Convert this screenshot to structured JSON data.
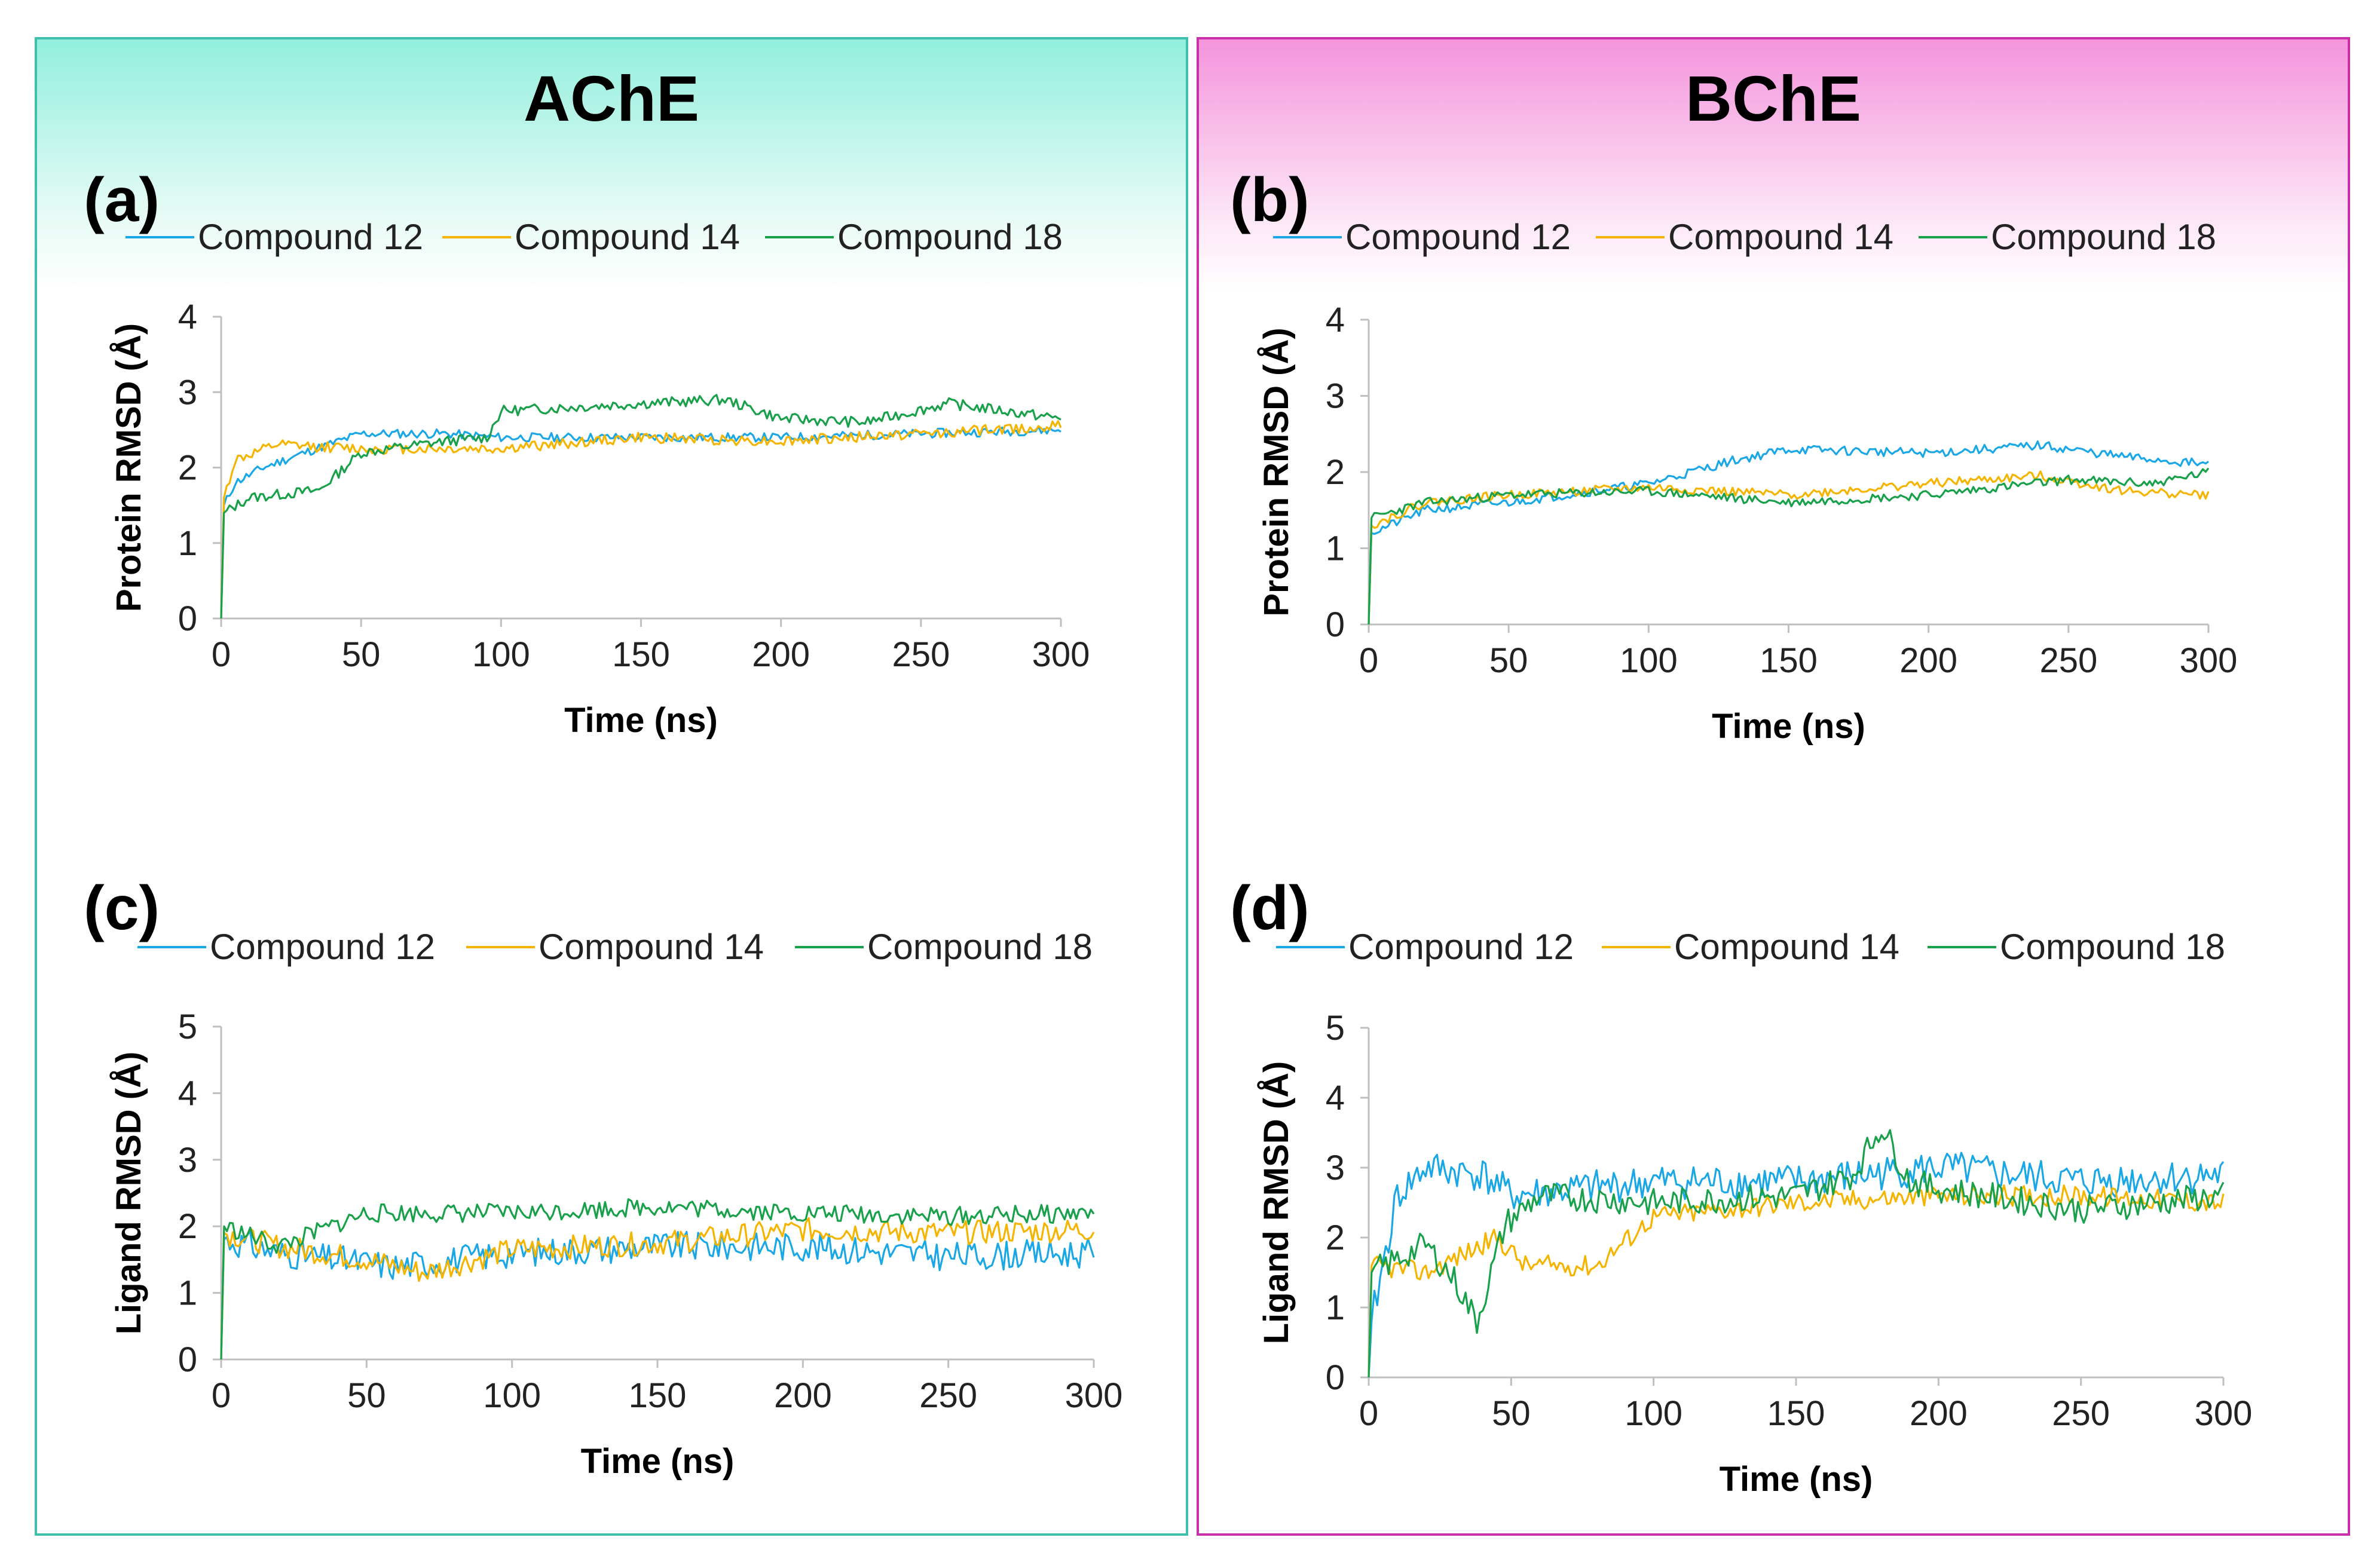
{
  "panels": {
    "ache": {
      "title": "AChE"
    },
    "bche": {
      "title": "BChE"
    }
  },
  "colors": {
    "compound_12": "#1aa7e6",
    "compound_14": "#f5b400",
    "compound_18": "#18a04a"
  },
  "chart_data": [
    {
      "id": "a",
      "panel_label": "(a)",
      "type": "line",
      "xlabel": "Time (ns)",
      "ylabel": "Protein RMSD (Å)",
      "xlim": [
        0,
        300
      ],
      "ylim": [
        0,
        4
      ],
      "xticks": [
        "0",
        "50",
        "100",
        "150",
        "200",
        "250",
        "300"
      ],
      "yticks": [
        "0",
        "1",
        "2",
        "3",
        "4"
      ],
      "legend": [
        "Compound 12",
        "Compound 14",
        "Compound 18"
      ],
      "series": [
        {
          "name": "Compound 12",
          "color": "#1aa7e6",
          "noise": 0.06,
          "seed": 11,
          "points": [
            [
              0,
              0
            ],
            [
              1,
              1.5
            ],
            [
              5,
              1.8
            ],
            [
              15,
              2.0
            ],
            [
              30,
              2.2
            ],
            [
              50,
              2.45
            ],
            [
              80,
              2.45
            ],
            [
              100,
              2.4
            ],
            [
              150,
              2.4
            ],
            [
              200,
              2.4
            ],
            [
              250,
              2.45
            ],
            [
              300,
              2.5
            ]
          ]
        },
        {
          "name": "Compound 14",
          "color": "#f5b400",
          "noise": 0.07,
          "seed": 12,
          "points": [
            [
              0,
              0
            ],
            [
              1,
              1.6
            ],
            [
              5,
              2.1
            ],
            [
              20,
              2.3
            ],
            [
              50,
              2.25
            ],
            [
              100,
              2.25
            ],
            [
              150,
              2.4
            ],
            [
              200,
              2.35
            ],
            [
              250,
              2.45
            ],
            [
              300,
              2.55
            ]
          ]
        },
        {
          "name": "Compound 18",
          "color": "#18a04a",
          "noise": 0.07,
          "seed": 13,
          "points": [
            [
              0,
              0
            ],
            [
              1,
              1.4
            ],
            [
              10,
              1.6
            ],
            [
              35,
              1.7
            ],
            [
              50,
              2.2
            ],
            [
              80,
              2.35
            ],
            [
              95,
              2.4
            ],
            [
              100,
              2.75
            ],
            [
              150,
              2.85
            ],
            [
              180,
              2.9
            ],
            [
              200,
              2.65
            ],
            [
              230,
              2.6
            ],
            [
              260,
              2.85
            ],
            [
              300,
              2.65
            ]
          ]
        }
      ]
    },
    {
      "id": "b",
      "panel_label": "(b)",
      "type": "line",
      "xlabel": "Time (ns)",
      "ylabel": "Protein RMSD (Å)",
      "xlim": [
        0,
        300
      ],
      "ylim": [
        0,
        4
      ],
      "xticks": [
        "0",
        "50",
        "100",
        "150",
        "200",
        "250",
        "300"
      ],
      "yticks": [
        "0",
        "1",
        "2",
        "3",
        "4"
      ],
      "legend": [
        "Compound 12",
        "Compound 14",
        "Compound 18"
      ],
      "series": [
        {
          "name": "Compound 12",
          "color": "#1aa7e6",
          "noise": 0.06,
          "seed": 21,
          "points": [
            [
              0,
              0
            ],
            [
              1,
              1.2
            ],
            [
              20,
              1.5
            ],
            [
              50,
              1.6
            ],
            [
              100,
              1.85
            ],
            [
              130,
              2.15
            ],
            [
              150,
              2.3
            ],
            [
              200,
              2.25
            ],
            [
              240,
              2.35
            ],
            [
              270,
              2.2
            ],
            [
              300,
              2.1
            ]
          ]
        },
        {
          "name": "Compound 14",
          "color": "#f5b400",
          "noise": 0.06,
          "seed": 22,
          "points": [
            [
              0,
              0
            ],
            [
              1,
              1.3
            ],
            [
              20,
              1.6
            ],
            [
              50,
              1.7
            ],
            [
              100,
              1.8
            ],
            [
              150,
              1.7
            ],
            [
              200,
              1.85
            ],
            [
              240,
              1.95
            ],
            [
              270,
              1.75
            ],
            [
              300,
              1.7
            ]
          ]
        },
        {
          "name": "Compound 18",
          "color": "#18a04a",
          "noise": 0.06,
          "seed": 23,
          "points": [
            [
              0,
              0
            ],
            [
              1,
              1.4
            ],
            [
              20,
              1.6
            ],
            [
              50,
              1.7
            ],
            [
              100,
              1.75
            ],
            [
              150,
              1.6
            ],
            [
              200,
              1.7
            ],
            [
              250,
              1.9
            ],
            [
              280,
              1.85
            ],
            [
              300,
              2.0
            ]
          ]
        }
      ]
    },
    {
      "id": "c",
      "panel_label": "(c)",
      "type": "line",
      "xlabel": "Time (ns)",
      "ylabel": "Ligand RMSD (Å)",
      "xlim": [
        0,
        300
      ],
      "ylim": [
        0,
        5
      ],
      "xticks": [
        "0",
        "50",
        "100",
        "150",
        "200",
        "250",
        "300"
      ],
      "yticks": [
        "0",
        "1",
        "2",
        "3",
        "4",
        "5"
      ],
      "legend": [
        "Compound 12",
        "Compound 14",
        "Compound 18"
      ],
      "series": [
        {
          "name": "Compound 12",
          "color": "#1aa7e6",
          "noise": 0.22,
          "seed": 31,
          "points": [
            [
              0,
              0
            ],
            [
              1,
              1.8
            ],
            [
              20,
              1.6
            ],
            [
              40,
              1.5
            ],
            [
              60,
              1.4
            ],
            [
              100,
              1.6
            ],
            [
              150,
              1.7
            ],
            [
              200,
              1.7
            ],
            [
              250,
              1.55
            ],
            [
              300,
              1.6
            ]
          ]
        },
        {
          "name": "Compound 14",
          "color": "#f5b400",
          "noise": 0.18,
          "seed": 32,
          "points": [
            [
              0,
              0
            ],
            [
              1,
              1.9
            ],
            [
              20,
              1.7
            ],
            [
              50,
              1.5
            ],
            [
              70,
              1.3
            ],
            [
              100,
              1.65
            ],
            [
              150,
              1.75
            ],
            [
              200,
              1.95
            ],
            [
              250,
              1.9
            ],
            [
              300,
              1.95
            ]
          ]
        },
        {
          "name": "Compound 18",
          "color": "#18a04a",
          "noise": 0.14,
          "seed": 33,
          "points": [
            [
              0,
              0
            ],
            [
              1,
              2.0
            ],
            [
              20,
              1.7
            ],
            [
              50,
              2.2
            ],
            [
              100,
              2.2
            ],
            [
              150,
              2.3
            ],
            [
              200,
              2.2
            ],
            [
              250,
              2.15
            ],
            [
              300,
              2.2
            ]
          ]
        }
      ]
    },
    {
      "id": "d",
      "panel_label": "(d)",
      "type": "line",
      "xlabel": "Time (ns)",
      "ylabel": "Ligand RMSD (Å)",
      "xlim": [
        0,
        300
      ],
      "ylim": [
        0,
        5
      ],
      "xticks": [
        "0",
        "50",
        "100",
        "150",
        "200",
        "250",
        "300"
      ],
      "yticks": [
        "0",
        "1",
        "2",
        "3",
        "4",
        "5"
      ],
      "legend": [
        "Compound 12",
        "Compound 14",
        "Compound 18"
      ],
      "series": [
        {
          "name": "Compound 12",
          "color": "#1aa7e6",
          "noise": 0.25,
          "seed": 41,
          "points": [
            [
              0,
              0
            ],
            [
              1,
              0.8
            ],
            [
              10,
              2.6
            ],
            [
              20,
              3.0
            ],
            [
              40,
              2.9
            ],
            [
              50,
              2.6
            ],
            [
              100,
              2.8
            ],
            [
              150,
              2.8
            ],
            [
              200,
              3.0
            ],
            [
              250,
              2.8
            ],
            [
              300,
              2.9
            ]
          ]
        },
        {
          "name": "Compound 14",
          "color": "#f5b400",
          "noise": 0.15,
          "seed": 42,
          "points": [
            [
              0,
              0
            ],
            [
              1,
              1.6
            ],
            [
              20,
              1.5
            ],
            [
              45,
              2.0
            ],
            [
              55,
              1.6
            ],
            [
              80,
              1.6
            ],
            [
              100,
              2.3
            ],
            [
              150,
              2.5
            ],
            [
              200,
              2.6
            ],
            [
              250,
              2.6
            ],
            [
              300,
              2.5
            ]
          ]
        },
        {
          "name": "Compound 18",
          "color": "#18a04a",
          "noise": 0.2,
          "seed": 43,
          "points": [
            [
              0,
              0
            ],
            [
              1,
              1.5
            ],
            [
              20,
              1.9
            ],
            [
              30,
              1.4
            ],
            [
              38,
              0.8
            ],
            [
              48,
              2.2
            ],
            [
              60,
              2.6
            ],
            [
              100,
              2.5
            ],
            [
              150,
              2.6
            ],
            [
              170,
              2.9
            ],
            [
              180,
              3.6
            ],
            [
              190,
              2.8
            ],
            [
              200,
              2.7
            ],
            [
              250,
              2.4
            ],
            [
              300,
              2.6
            ]
          ]
        }
      ]
    }
  ]
}
